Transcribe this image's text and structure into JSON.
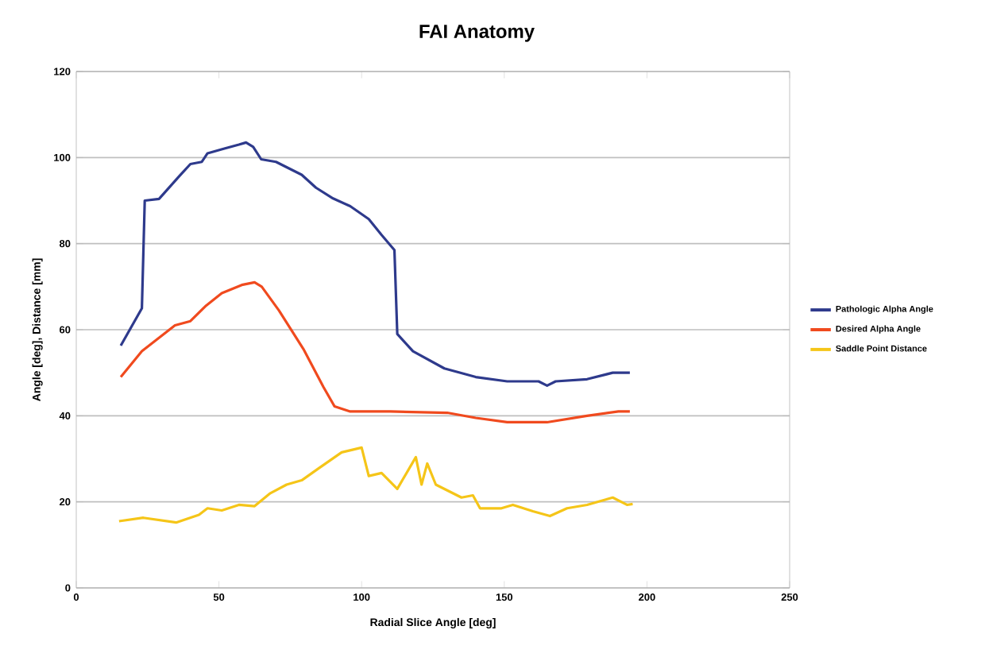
{
  "chart_data": {
    "type": "line",
    "title": "FAI Anatomy",
    "xlabel": "Radial Slice Angle [deg]",
    "ylabel": "Angle [deg], Distance [mm]",
    "xlim": [
      0,
      250
    ],
    "xticks": [
      0,
      50,
      100,
      150,
      200,
      250
    ],
    "ylim": [
      0,
      120
    ],
    "yticks": [
      0,
      20,
      40,
      60,
      80,
      100,
      120
    ],
    "grid": "y",
    "legend": "right",
    "marker": "none",
    "line_style": "solid",
    "series": [
      {
        "name": "Pathologic Alpha Angle",
        "color": "#2e3a8c",
        "x": [
          15.6,
          23,
          24,
          29,
          36,
          40,
          44,
          46,
          51.4,
          57,
          59.5,
          62,
          64.8,
          70,
          79,
          84,
          90,
          96,
          102.5,
          107,
          111.5,
          112.5,
          118,
          129,
          140,
          151,
          162,
          165,
          168,
          179,
          188,
          194
        ],
        "values": [
          56.3,
          65,
          90,
          90.4,
          95.6,
          98.5,
          99,
          101,
          102,
          103,
          103.5,
          102.5,
          99.6,
          99,
          96,
          93,
          90.5,
          88.7,
          85.7,
          82,
          78.5,
          59,
          55,
          51,
          49,
          48,
          48,
          47,
          48,
          48.5,
          50,
          50
        ]
      },
      {
        "name": "Desired Alpha Angle",
        "color": "#f04a1e",
        "x": [
          15.6,
          23,
          34.6,
          40,
          45.5,
          51,
          58,
          62.5,
          65,
          71,
          79.6,
          86.6,
          90.5,
          96,
          110,
          130,
          140,
          151,
          165,
          179,
          190,
          194
        ],
        "values": [
          49,
          55,
          61,
          62,
          65.6,
          68.5,
          70.4,
          71,
          70,
          64.5,
          55.5,
          46.7,
          42.2,
          41,
          41,
          40.7,
          39.5,
          38.5,
          38.5,
          40,
          41,
          41
        ]
      },
      {
        "name": "Saddle Point Distance",
        "color": "#f5c518",
        "x": [
          15,
          23.5,
          35,
          43,
          46,
          51,
          57,
          62.5,
          68,
          73.7,
          79,
          85,
          93,
          100,
          102.5,
          107,
          112.5,
          119,
          121,
          123,
          126,
          135,
          139,
          141.5,
          149,
          153,
          160,
          166,
          172,
          179,
          188,
          193,
          195
        ],
        "values": [
          15.5,
          16.3,
          15.2,
          17,
          18.5,
          18,
          19.3,
          19,
          22,
          24,
          25,
          27.8,
          31.5,
          32.6,
          26,
          26.7,
          23,
          30.4,
          24,
          28.9,
          24,
          21,
          21.5,
          18.5,
          18.5,
          19.3,
          17.8,
          16.7,
          18.5,
          19.3,
          21,
          19.3,
          19.5
        ]
      }
    ]
  }
}
